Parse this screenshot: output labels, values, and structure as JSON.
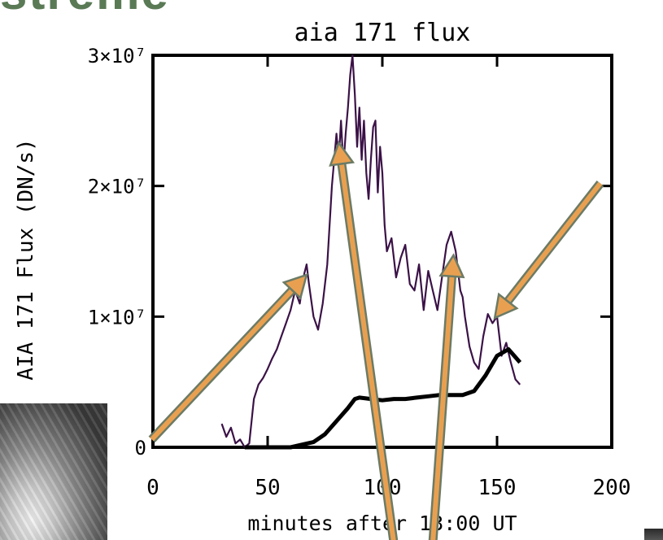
{
  "slide": {
    "heading_fragment": "streme"
  },
  "chart_data": {
    "type": "line",
    "title": "aia 171 flux",
    "xlabel": "minutes after 13:00 UT",
    "ylabel": "AIA 171 Flux (DN/s)",
    "xlim": [
      0,
      200
    ],
    "ylim": [
      0,
      30000000
    ],
    "x_ticks": [
      "0",
      "50",
      "100",
      "150",
      "200"
    ],
    "y_ticks": [
      {
        "value": 0,
        "label": "0"
      },
      {
        "value": 10000000,
        "label": "1×10⁷"
      },
      {
        "value": 20000000,
        "label": "2×10⁷"
      },
      {
        "value": 30000000,
        "label": "3×10⁷"
      }
    ],
    "grid": false,
    "colors": {
      "series_1": "#3b1247",
      "series_2": "#000000",
      "arrow": "#e8a050",
      "arrow_outline": "#6b7b66"
    },
    "series": [
      {
        "x": [
          30,
          32,
          34,
          36,
          38,
          40,
          42,
          44,
          46,
          48,
          50,
          52,
          54,
          56,
          58,
          60,
          62,
          64,
          66,
          67,
          68,
          70,
          72,
          74,
          76,
          78,
          80,
          81,
          82,
          83,
          84,
          85,
          86,
          87,
          88,
          89,
          90,
          91,
          92,
          93,
          94,
          95,
          96,
          97,
          98,
          99,
          100,
          101,
          102,
          104,
          106,
          108,
          110,
          112,
          114,
          116,
          118,
          120,
          122,
          124,
          126,
          128,
          130,
          132,
          134,
          135,
          136,
          138,
          140,
          142,
          144,
          146,
          148,
          150,
          152,
          154,
          156,
          158,
          160
        ],
        "values": [
          1800000,
          800000,
          1500000,
          300000,
          600000,
          0,
          300000,
          3700000,
          4800000,
          5300000,
          6000000,
          6800000,
          7500000,
          8500000,
          9500000,
          10500000,
          12000000,
          11000000,
          13300000,
          14000000,
          12500000,
          10000000,
          9000000,
          11000000,
          14000000,
          20000000,
          24000000,
          22000000,
          25000000,
          21500000,
          24000000,
          26000000,
          28500000,
          30000000,
          27000000,
          23000000,
          26000000,
          22000000,
          25000000,
          21000000,
          19000000,
          22000000,
          24500000,
          25000000,
          19500000,
          23000000,
          21000000,
          17000000,
          15000000,
          16000000,
          13000000,
          14500000,
          15500000,
          12500000,
          12000000,
          14000000,
          10500000,
          13500000,
          12000000,
          10500000,
          13000000,
          15500000,
          16500000,
          15000000,
          12000000,
          11500000,
          10000000,
          7700000,
          6500000,
          6000000,
          8500000,
          10200000,
          9500000,
          10000000,
          7000000,
          8000000,
          6500000,
          5200000,
          4800000
        ]
      },
      {
        "x": [
          40,
          50,
          60,
          70,
          75,
          80,
          85,
          88,
          90,
          95,
          100,
          105,
          110,
          115,
          120,
          125,
          130,
          135,
          140,
          145,
          150,
          155,
          160
        ],
        "values": [
          0,
          0,
          0,
          400000,
          1000000,
          2000000,
          3000000,
          3700000,
          3800000,
          3700000,
          3600000,
          3700000,
          3700000,
          3800000,
          3900000,
          4000000,
          4000000,
          4000000,
          4300000,
          5500000,
          7000000,
          7500000,
          6500000
        ]
      }
    ],
    "annotations": [
      {
        "type": "arrow",
        "from": [
          -0.5,
          600000
        ],
        "to": [
          67,
          13200000
        ]
      },
      {
        "type": "arrow",
        "from": [
          105,
          -7300000
        ],
        "to": [
          81,
          23300000
        ]
      },
      {
        "type": "arrow",
        "from": [
          122,
          -7300000
        ],
        "to": [
          131,
          14700000
        ]
      },
      {
        "type": "arrow",
        "from": [
          195,
          20200000
        ],
        "to": [
          149,
          9900000
        ]
      }
    ]
  }
}
